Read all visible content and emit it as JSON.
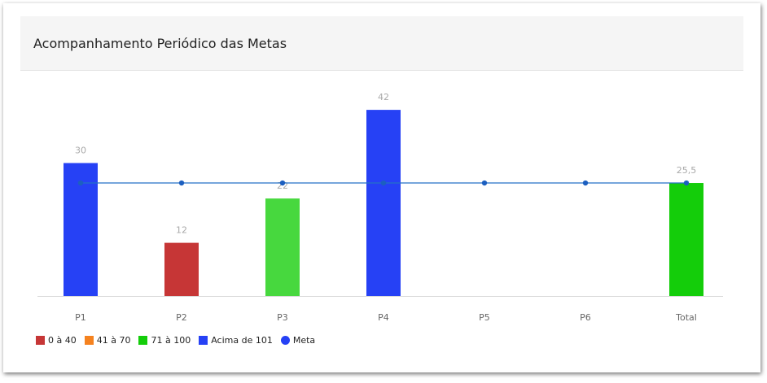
{
  "card": {
    "title": "Acompanhamento Periódico das Metas"
  },
  "chart_data": {
    "type": "bar",
    "categories": [
      "P1",
      "P2",
      "P3",
      "P4",
      "P5",
      "P6",
      "Total"
    ],
    "series": [
      {
        "values": [
          30,
          12,
          22,
          42,
          null,
          null,
          25.5
        ],
        "labels": [
          "30",
          "12",
          "22",
          "42",
          "",
          "",
          "25,5"
        ],
        "bar_colors": [
          "#2641f5",
          "#c63636",
          "#47d83e",
          "#2641f5",
          null,
          null,
          "#14cd0a"
        ]
      },
      {
        "name": "Meta",
        "type": "line",
        "values": [
          25.5,
          25.5,
          25.5,
          25.5,
          25.5,
          25.5,
          25.5
        ],
        "color": "#2572c7",
        "marker_color": "#1c5fc0"
      }
    ],
    "ylim": [
      0,
      48
    ],
    "grid": false,
    "legend": {
      "placement": "bottom-left",
      "items": [
        {
          "label": "0 à 40",
          "color": "#c63636",
          "shape": "square"
        },
        {
          "label": "41 à 70",
          "color": "#f5821f",
          "shape": "square"
        },
        {
          "label": "71 à 100",
          "color": "#14cd0a",
          "shape": "square"
        },
        {
          "label": "Acima de 101",
          "color": "#2641f5",
          "shape": "square"
        },
        {
          "label": "Meta",
          "color": "#2641f5",
          "shape": "circle"
        }
      ]
    },
    "colors": {
      "label": "#a9a9a9",
      "tick": "#666666",
      "axis": "#d9d9d9"
    }
  }
}
